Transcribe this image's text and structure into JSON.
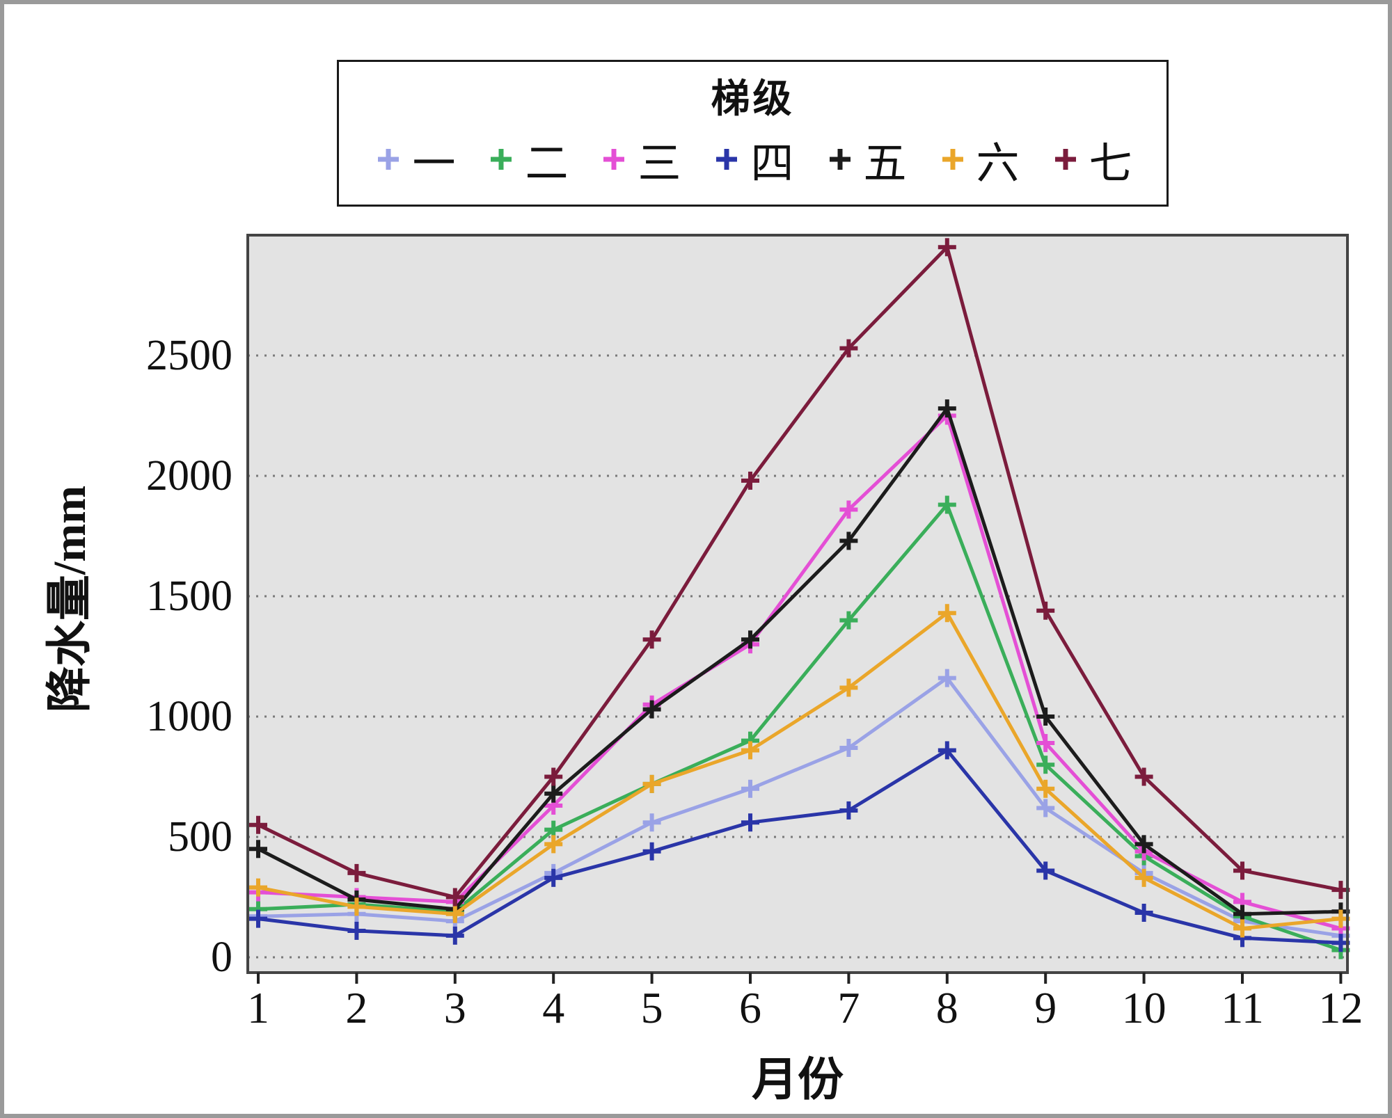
{
  "chart_data": {
    "type": "line",
    "legend_title": "梯级",
    "xlabel": "月份",
    "ylabel": "降水量/mm",
    "x": [
      1,
      2,
      3,
      4,
      5,
      6,
      7,
      8,
      9,
      10,
      11,
      12
    ],
    "ylim": [
      0,
      3000
    ],
    "yticks": [
      0,
      500,
      1000,
      1500,
      2000,
      2500
    ],
    "grid": "dotted-horizontal",
    "legend_position": "top-center",
    "plot_background": "#e3e3e3",
    "grid_color": "#7a7a7a",
    "frame_color": "#444444",
    "marker": "plus",
    "series": [
      {
        "name": "一",
        "color": "#9aa2e6",
        "values": [
          170,
          180,
          150,
          350,
          560,
          700,
          870,
          1160,
          620,
          350,
          150,
          90
        ]
      },
      {
        "name": "二",
        "color": "#3aae5a",
        "values": [
          200,
          220,
          190,
          530,
          720,
          900,
          1400,
          1880,
          800,
          420,
          170,
          30
        ]
      },
      {
        "name": "三",
        "color": "#e44fd5",
        "values": [
          270,
          250,
          230,
          630,
          1050,
          1300,
          1860,
          2250,
          890,
          440,
          230,
          120
        ]
      },
      {
        "name": "四",
        "color": "#2a35a8",
        "values": [
          160,
          110,
          90,
          330,
          440,
          560,
          610,
          860,
          360,
          185,
          80,
          60
        ]
      },
      {
        "name": "五",
        "color": "#1c1c1c",
        "values": [
          450,
          240,
          200,
          680,
          1030,
          1320,
          1730,
          2280,
          1000,
          470,
          180,
          190
        ]
      },
      {
        "name": "六",
        "color": "#eaa62a",
        "values": [
          290,
          210,
          180,
          470,
          720,
          860,
          1120,
          1430,
          700,
          330,
          120,
          160
        ]
      },
      {
        "name": "七",
        "color": "#7b1c3c",
        "values": [
          550,
          350,
          250,
          750,
          1320,
          1980,
          2530,
          2950,
          1440,
          750,
          360,
          280
        ]
      }
    ]
  }
}
